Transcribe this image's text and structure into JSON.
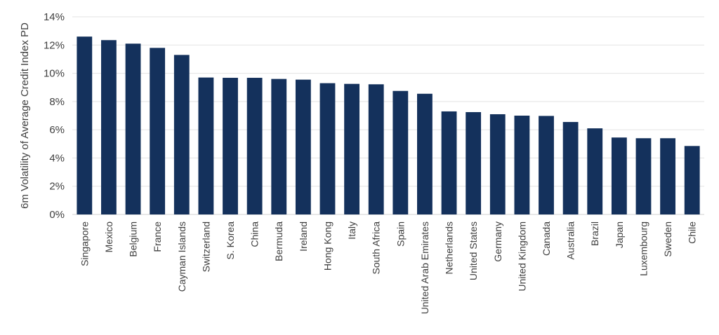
{
  "chart_data": {
    "type": "bar",
    "ylabel": "6m Volatility of Average Credit Index PD",
    "ylim": [
      0,
      14
    ],
    "yticks": [
      0,
      2,
      4,
      6,
      8,
      10,
      12,
      14
    ],
    "ytick_labels": [
      "0%",
      "2%",
      "4%",
      "6%",
      "8%",
      "10%",
      "12%",
      "14%"
    ],
    "categories": [
      "Singapore",
      "Mexico",
      "Belgium",
      "France",
      "Cayman Islands",
      "Switzerland",
      "S. Korea",
      "China",
      "Bermuda",
      "Ireland",
      "Hong Kong",
      "Italy",
      "South Africa",
      "Spain",
      "United Arab Emirates",
      "Netherlands",
      "United States",
      "Germany",
      "United Kingdom",
      "Canada",
      "Australia",
      "Brazil",
      "Japan",
      "Luxembourg",
      "Sweden",
      "Chile"
    ],
    "values": [
      12.6,
      12.35,
      12.1,
      11.8,
      11.3,
      9.7,
      9.68,
      9.68,
      9.6,
      9.55,
      9.3,
      9.25,
      9.22,
      8.75,
      8.55,
      7.3,
      7.25,
      7.1,
      7.0,
      6.98,
      6.55,
      6.1,
      5.45,
      5.4,
      5.4,
      4.85
    ],
    "bar_color": "#14315c",
    "grid": true,
    "legend": "none"
  }
}
